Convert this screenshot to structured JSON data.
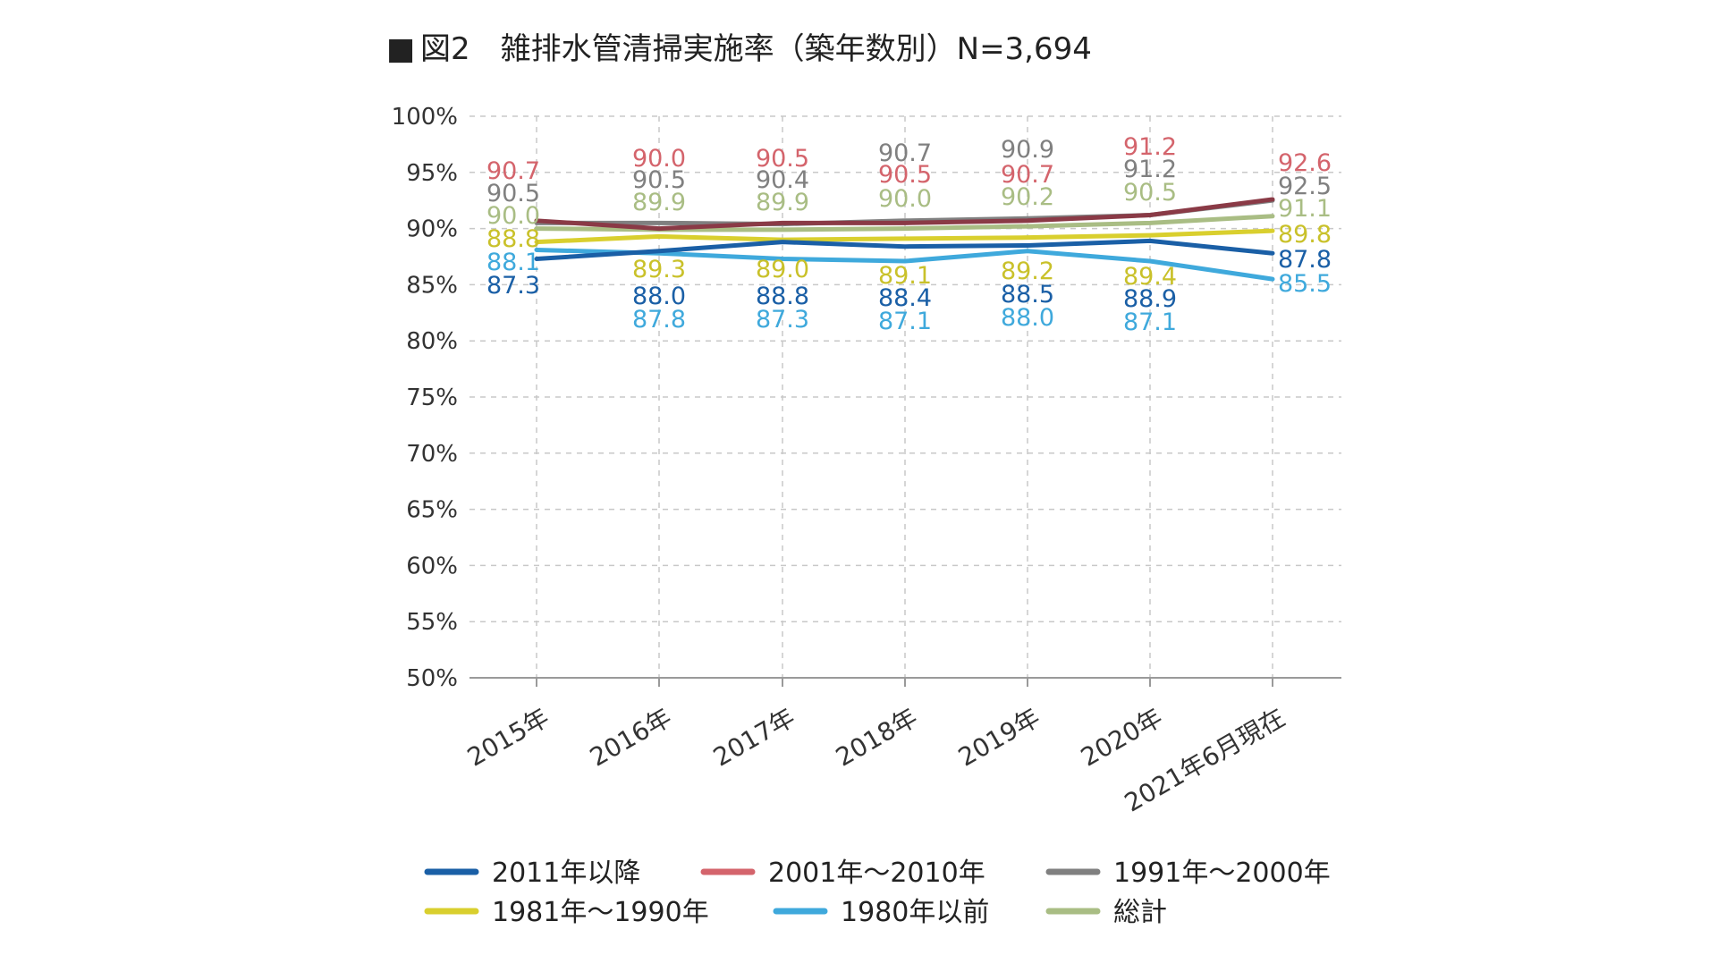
{
  "chart_data": {
    "type": "line",
    "title": "図2　雑排水管清掃実施率（築年数別）N=3,694",
    "title_marker": "■",
    "xlabel": "",
    "ylabel": "",
    "categories": [
      "2015年",
      "2016年",
      "2017年",
      "2018年",
      "2019年",
      "2020年",
      "2021年6月現在"
    ],
    "ylim": [
      50,
      100
    ],
    "y_ticks": [
      100,
      95,
      90,
      85,
      80,
      75,
      70,
      65,
      60,
      55,
      50
    ],
    "y_tick_labels": [
      "100%",
      "95%",
      "90%",
      "85%",
      "80%",
      "75%",
      "70%",
      "65%",
      "60%",
      "55%",
      "50%"
    ],
    "grid": true,
    "legend_position": "bottom",
    "series": [
      {
        "name": "2011年以降",
        "color": "#1a5fa6",
        "values": [
          87.3,
          88.0,
          88.8,
          88.4,
          88.5,
          88.9,
          87.8
        ],
        "labels": [
          "87.3",
          "88.0",
          "88.8",
          "88.4",
          "88.5",
          "88.9",
          "87.8"
        ]
      },
      {
        "name": "2001年～2010年",
        "color": "#d4646c",
        "values": [
          90.7,
          90.0,
          90.5,
          90.5,
          90.7,
          91.2,
          92.6
        ],
        "labels": [
          "90.7",
          "90.0",
          "90.5",
          "90.5",
          "90.7",
          "91.2",
          "92.6"
        ]
      },
      {
        "name": "1991年～2000年",
        "color": "#808080",
        "values": [
          90.5,
          90.5,
          90.4,
          90.7,
          90.9,
          91.2,
          92.5
        ],
        "labels": [
          "90.5",
          "90.5",
          "90.4",
          "90.7",
          "90.9",
          "91.2",
          "92.5"
        ]
      },
      {
        "name": "1981年～1990年",
        "color": "#d9cf2e",
        "values": [
          88.8,
          89.3,
          89.0,
          89.1,
          89.2,
          89.4,
          89.8
        ],
        "labels": [
          "88.8",
          "89.3",
          "89.0",
          "89.1",
          "89.2",
          "89.4",
          "89.8"
        ]
      },
      {
        "name": "1980年以前",
        "color": "#3fa9dc",
        "values": [
          88.1,
          87.8,
          87.3,
          87.1,
          88.0,
          87.1,
          85.5
        ],
        "labels": [
          "88.1",
          "87.8",
          "87.3",
          "87.1",
          "88.0",
          "87.1",
          "85.5"
        ]
      },
      {
        "name": "総計",
        "color": "#a9bd84",
        "values": [
          90.0,
          89.9,
          89.9,
          90.0,
          90.2,
          90.5,
          91.1
        ],
        "labels": [
          "90.0",
          "89.9",
          "89.9",
          "90.0",
          "90.2",
          "90.5",
          "91.1"
        ]
      }
    ],
    "line_colors": {
      "2001_2010_line": "#8a3a46",
      "2011_after_overlap": "#1b6a3a"
    },
    "label_colors": {
      "2011年以降": "#1a5fa6",
      "2001年～2010年": "#d4646c",
      "1991年～2000年": "#808080",
      "1981年～1990年": "#c9c12a",
      "1980年以前": "#3fa9dc",
      "総計": "#a9bd84"
    }
  }
}
